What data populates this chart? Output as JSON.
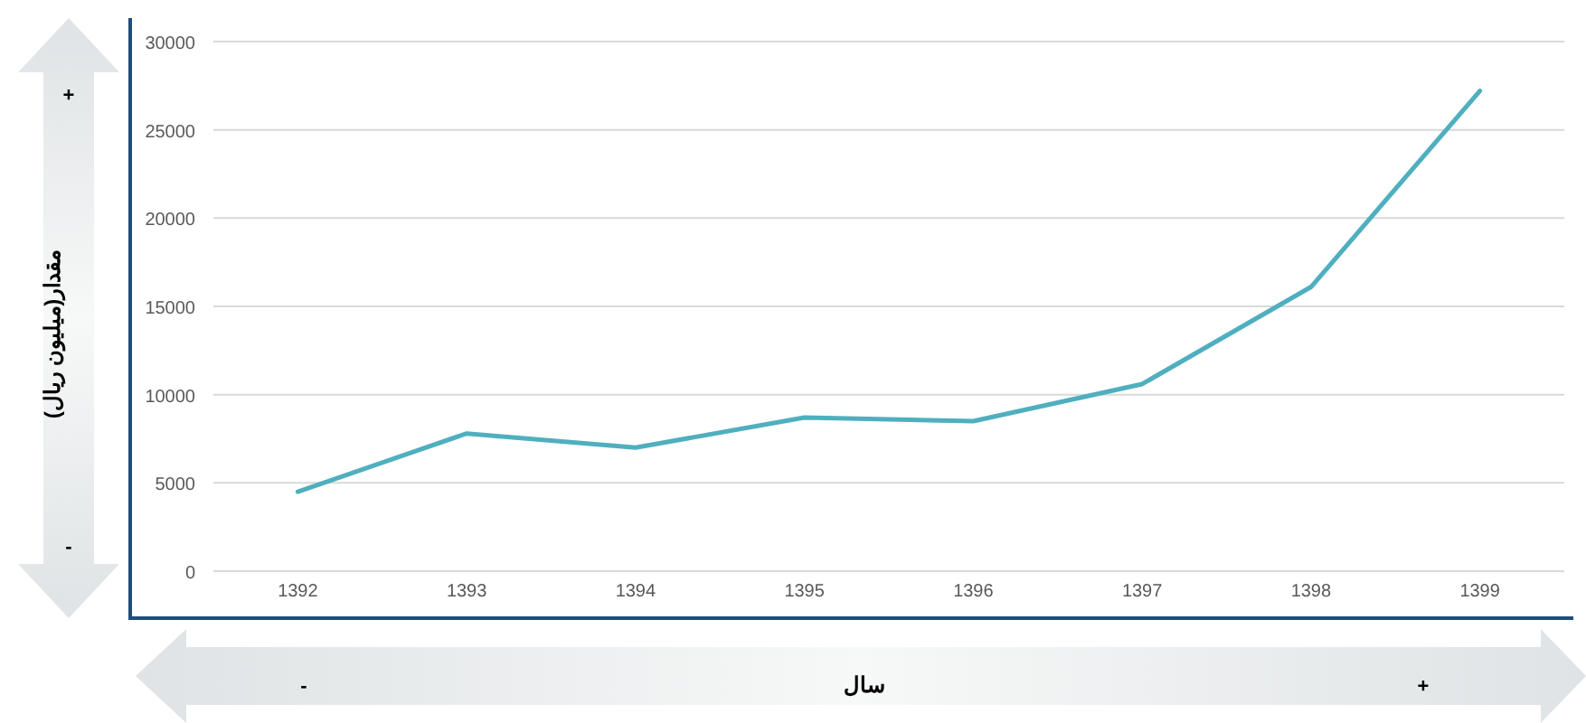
{
  "chart_data": {
    "type": "line",
    "xlabel": "سال",
    "ylabel": "مقدار(میلیون ریال)",
    "categories": [
      "1392",
      "1393",
      "1394",
      "1395",
      "1396",
      "1397",
      "1398",
      "1399"
    ],
    "series": [
      {
        "color": "#4fafbf",
        "values": [
          4500,
          7800,
          7000,
          8700,
          8500,
          10600,
          16100,
          27200
        ]
      }
    ],
    "ylim": [
      0,
      30000
    ],
    "yticks": [
      0,
      5000,
      10000,
      15000,
      20000,
      25000,
      30000
    ],
    "grid": "y",
    "marker": "none",
    "line_style": "solid",
    "annotations": [
      "+",
      "-",
      "-",
      "+"
    ]
  }
}
